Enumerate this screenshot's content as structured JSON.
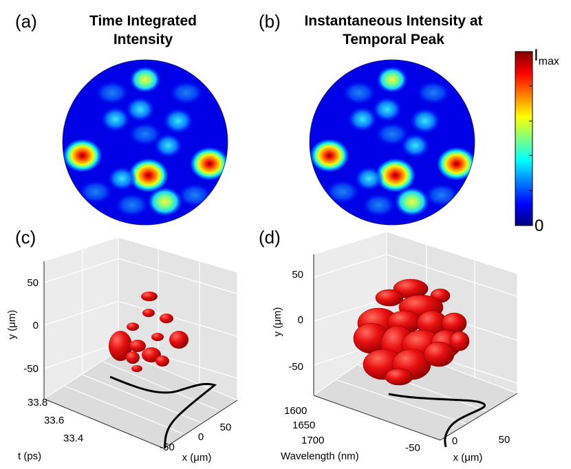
{
  "panels": {
    "a": {
      "label": "(a)",
      "title_lines": [
        "Time Integrated",
        "Intensity"
      ]
    },
    "b": {
      "label": "(b)",
      "title_lines": [
        "Instantaneous Intensity at",
        "Temporal Peak"
      ]
    },
    "c": {
      "label": "(c)"
    },
    "d": {
      "label": "(d)"
    }
  },
  "colorbar": {
    "max_label": "I",
    "max_sub": "max",
    "min_label": "0",
    "colormap": [
      "#00007f",
      "#0000ff",
      "#007fff",
      "#00ffff",
      "#7fff7f",
      "#ffff00",
      "#ff7f00",
      "#ff0000",
      "#7f0000"
    ]
  },
  "colors": {
    "blob": "#e41212",
    "curve": "#000000",
    "axes_bg": "#ececec",
    "grid": "#c8c8c8"
  },
  "chart_data": [
    {
      "type": "heatmap",
      "title": "Time Integrated Intensity",
      "colorscale": "jet",
      "domain": "circular",
      "value_range": [
        "0",
        "I_max"
      ],
      "hotspots": [
        {
          "x": 0.5,
          "y": 0.12,
          "intensity": 0.55
        },
        {
          "x": 0.47,
          "y": 0.3,
          "intensity": 0.45
        },
        {
          "x": 0.32,
          "y": 0.36,
          "intensity": 0.45
        },
        {
          "x": 0.7,
          "y": 0.37,
          "intensity": 0.5
        },
        {
          "x": 0.12,
          "y": 0.58,
          "intensity": 0.95
        },
        {
          "x": 0.52,
          "y": 0.7,
          "intensity": 1.0
        },
        {
          "x": 0.89,
          "y": 0.63,
          "intensity": 0.95
        },
        {
          "x": 0.62,
          "y": 0.86,
          "intensity": 0.75
        },
        {
          "x": 0.36,
          "y": 0.72,
          "intensity": 0.4
        },
        {
          "x": 0.64,
          "y": 0.52,
          "intensity": 0.4
        }
      ]
    },
    {
      "type": "heatmap",
      "title": "Instantaneous Intensity at Temporal Peak",
      "colorscale": "jet",
      "domain": "circular",
      "value_range": [
        "0",
        "I_max"
      ],
      "hotspots": [
        {
          "x": 0.5,
          "y": 0.12,
          "intensity": 0.55
        },
        {
          "x": 0.47,
          "y": 0.3,
          "intensity": 0.45
        },
        {
          "x": 0.32,
          "y": 0.36,
          "intensity": 0.45
        },
        {
          "x": 0.7,
          "y": 0.37,
          "intensity": 0.5
        },
        {
          "x": 0.12,
          "y": 0.58,
          "intensity": 0.95
        },
        {
          "x": 0.52,
          "y": 0.7,
          "intensity": 1.0
        },
        {
          "x": 0.89,
          "y": 0.63,
          "intensity": 0.95
        },
        {
          "x": 0.62,
          "y": 0.86,
          "intensity": 0.75
        },
        {
          "x": 0.36,
          "y": 0.72,
          "intensity": 0.4
        },
        {
          "x": 0.64,
          "y": 0.52,
          "intensity": 0.4
        }
      ]
    },
    {
      "type": "scatter",
      "subtype": "3d-isosurface",
      "xlabel": "x (μm)",
      "ylabel": "y (μm)",
      "zlabel": "t (ps)",
      "xticks": [
        "-50",
        "0",
        "50"
      ],
      "yticks": [
        "50",
        "0",
        "-50"
      ],
      "zticks": [
        "33.8",
        "33.6",
        "33.4"
      ],
      "grid": true
    },
    {
      "type": "scatter",
      "subtype": "3d-isosurface",
      "xlabel": "x (μm)",
      "ylabel": "y (μm)",
      "zlabel": "Wavelength (nm)",
      "xticks": [
        "-50",
        "0",
        "50"
      ],
      "yticks": [
        "50",
        "0",
        "-50"
      ],
      "zticks": [
        "1600",
        "1650",
        "1700"
      ],
      "grid": true
    }
  ]
}
